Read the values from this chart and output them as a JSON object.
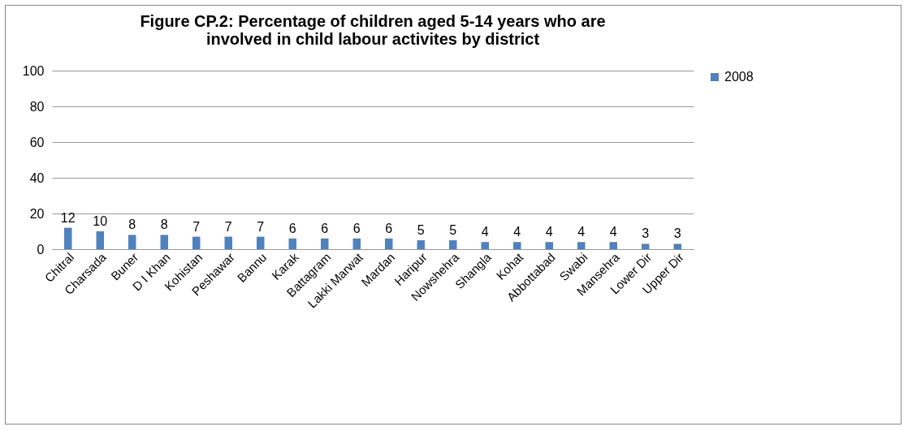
{
  "chart_data": {
    "type": "bar",
    "title": "Figure CP.2: Percentage of children aged 5-14 years who are involved in child labour activites by district",
    "categories": [
      "Chitral",
      "Charsada",
      "Buner",
      "D I Khan",
      "Kohistan",
      "Peshawar",
      "Bannu",
      "Karak",
      "Battagram",
      "Lakki Marwat",
      "Mardan",
      "Haripur",
      "Nowshehra",
      "Shangla",
      "Kohat",
      "Abbottabad",
      "Swabi",
      "Mansehra",
      "Lower Dir",
      "Upper Dir"
    ],
    "series": [
      {
        "name": "2008",
        "color": "#4f81bd",
        "values": [
          12,
          10,
          8,
          8,
          7,
          7,
          7,
          6,
          6,
          6,
          6,
          5,
          5,
          4,
          4,
          4,
          4,
          4,
          3,
          3
        ]
      }
    ],
    "ylim": [
      0,
      100
    ],
    "yticks": [
      0,
      20,
      40,
      60,
      80,
      100
    ],
    "grid": "y",
    "legend": "right",
    "data_labels": true
  }
}
